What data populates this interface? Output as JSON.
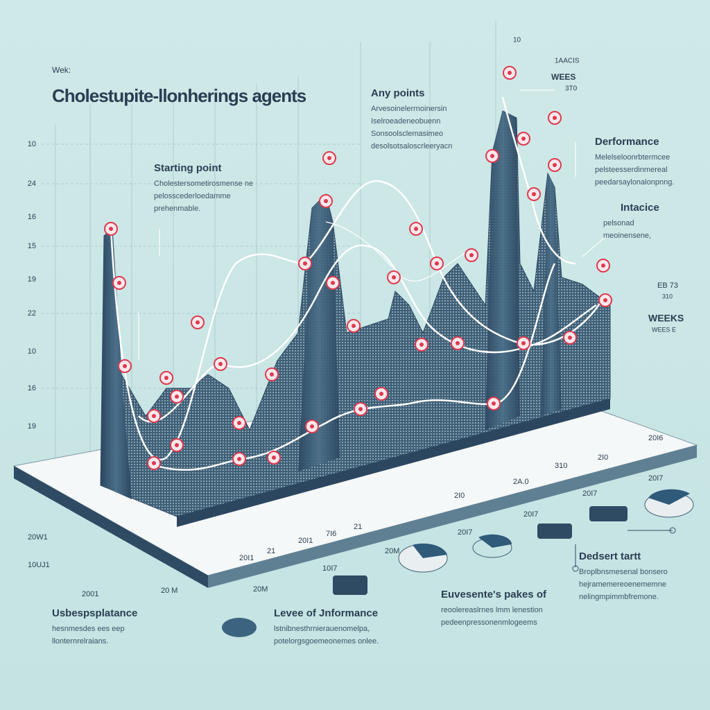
{
  "header": {
    "label": "Wek:",
    "title": "Cholestupite-llonherings agents"
  },
  "y_axis_labels": [
    "10",
    "24",
    "16",
    "15",
    "19",
    "22",
    "10",
    "16",
    "19"
  ],
  "top_labels": [
    "10",
    "1AACIS",
    "WEES",
    "3T0"
  ],
  "base_labels": [
    "20I7",
    "20I7",
    "20I7",
    "20I7",
    "20M",
    "10I7",
    "20M",
    "10UJ1",
    "2001",
    "20 M",
    "20W1"
  ],
  "x_axis_labels": [
    "20I1",
    "21",
    "20I1",
    "7I6",
    "21",
    "2I0",
    "2A.0",
    "310",
    "2I0",
    "20I6"
  ],
  "side_labels": [
    "EB 73",
    "310",
    "WEEKS",
    "WEES E"
  ],
  "callouts": [
    {
      "title": "Starting point",
      "lines": [
        "Cholestersometirosmense ne",
        "pelosscederloedamme",
        "prehenmable."
      ]
    },
    {
      "title": "Any points",
      "lines": [
        "Arvesoinelerrnoinersin",
        "Iselroeadeneobuenn",
        "Sonsoolsclemasimeo",
        "desolsotsaloscrleeryacn"
      ]
    },
    {
      "title": "Derformance",
      "lines": [
        "Melelseloonrbtermcee",
        "pelsteesserdinmereal",
        "peedarsaylonalonpnng."
      ]
    },
    {
      "title": "Intacice",
      "lines": [
        "pelsonad",
        "meoinensene,"
      ]
    },
    {
      "title": "Dedsert tartt",
      "lines": [
        "Broplbnsmesenal bonsero",
        "hejramemereoenememne",
        "nelingmpimmbfremone."
      ]
    },
    {
      "title": "Euvesente's pakes of",
      "lines": [
        "reoolereaslrnes lmm lenestion",
        "pedeenpressonenmlogeems"
      ]
    },
    {
      "title": "Levee of Jnformance",
      "lines": [
        "lstnibnesthrnierauenomelpa,",
        "potelorgsgoemeonemes onlee."
      ]
    },
    {
      "title": "Usbespsplatance",
      "lines": [
        "hesnmesdes ees eep",
        "llonternrelraians."
      ]
    }
  ]
}
